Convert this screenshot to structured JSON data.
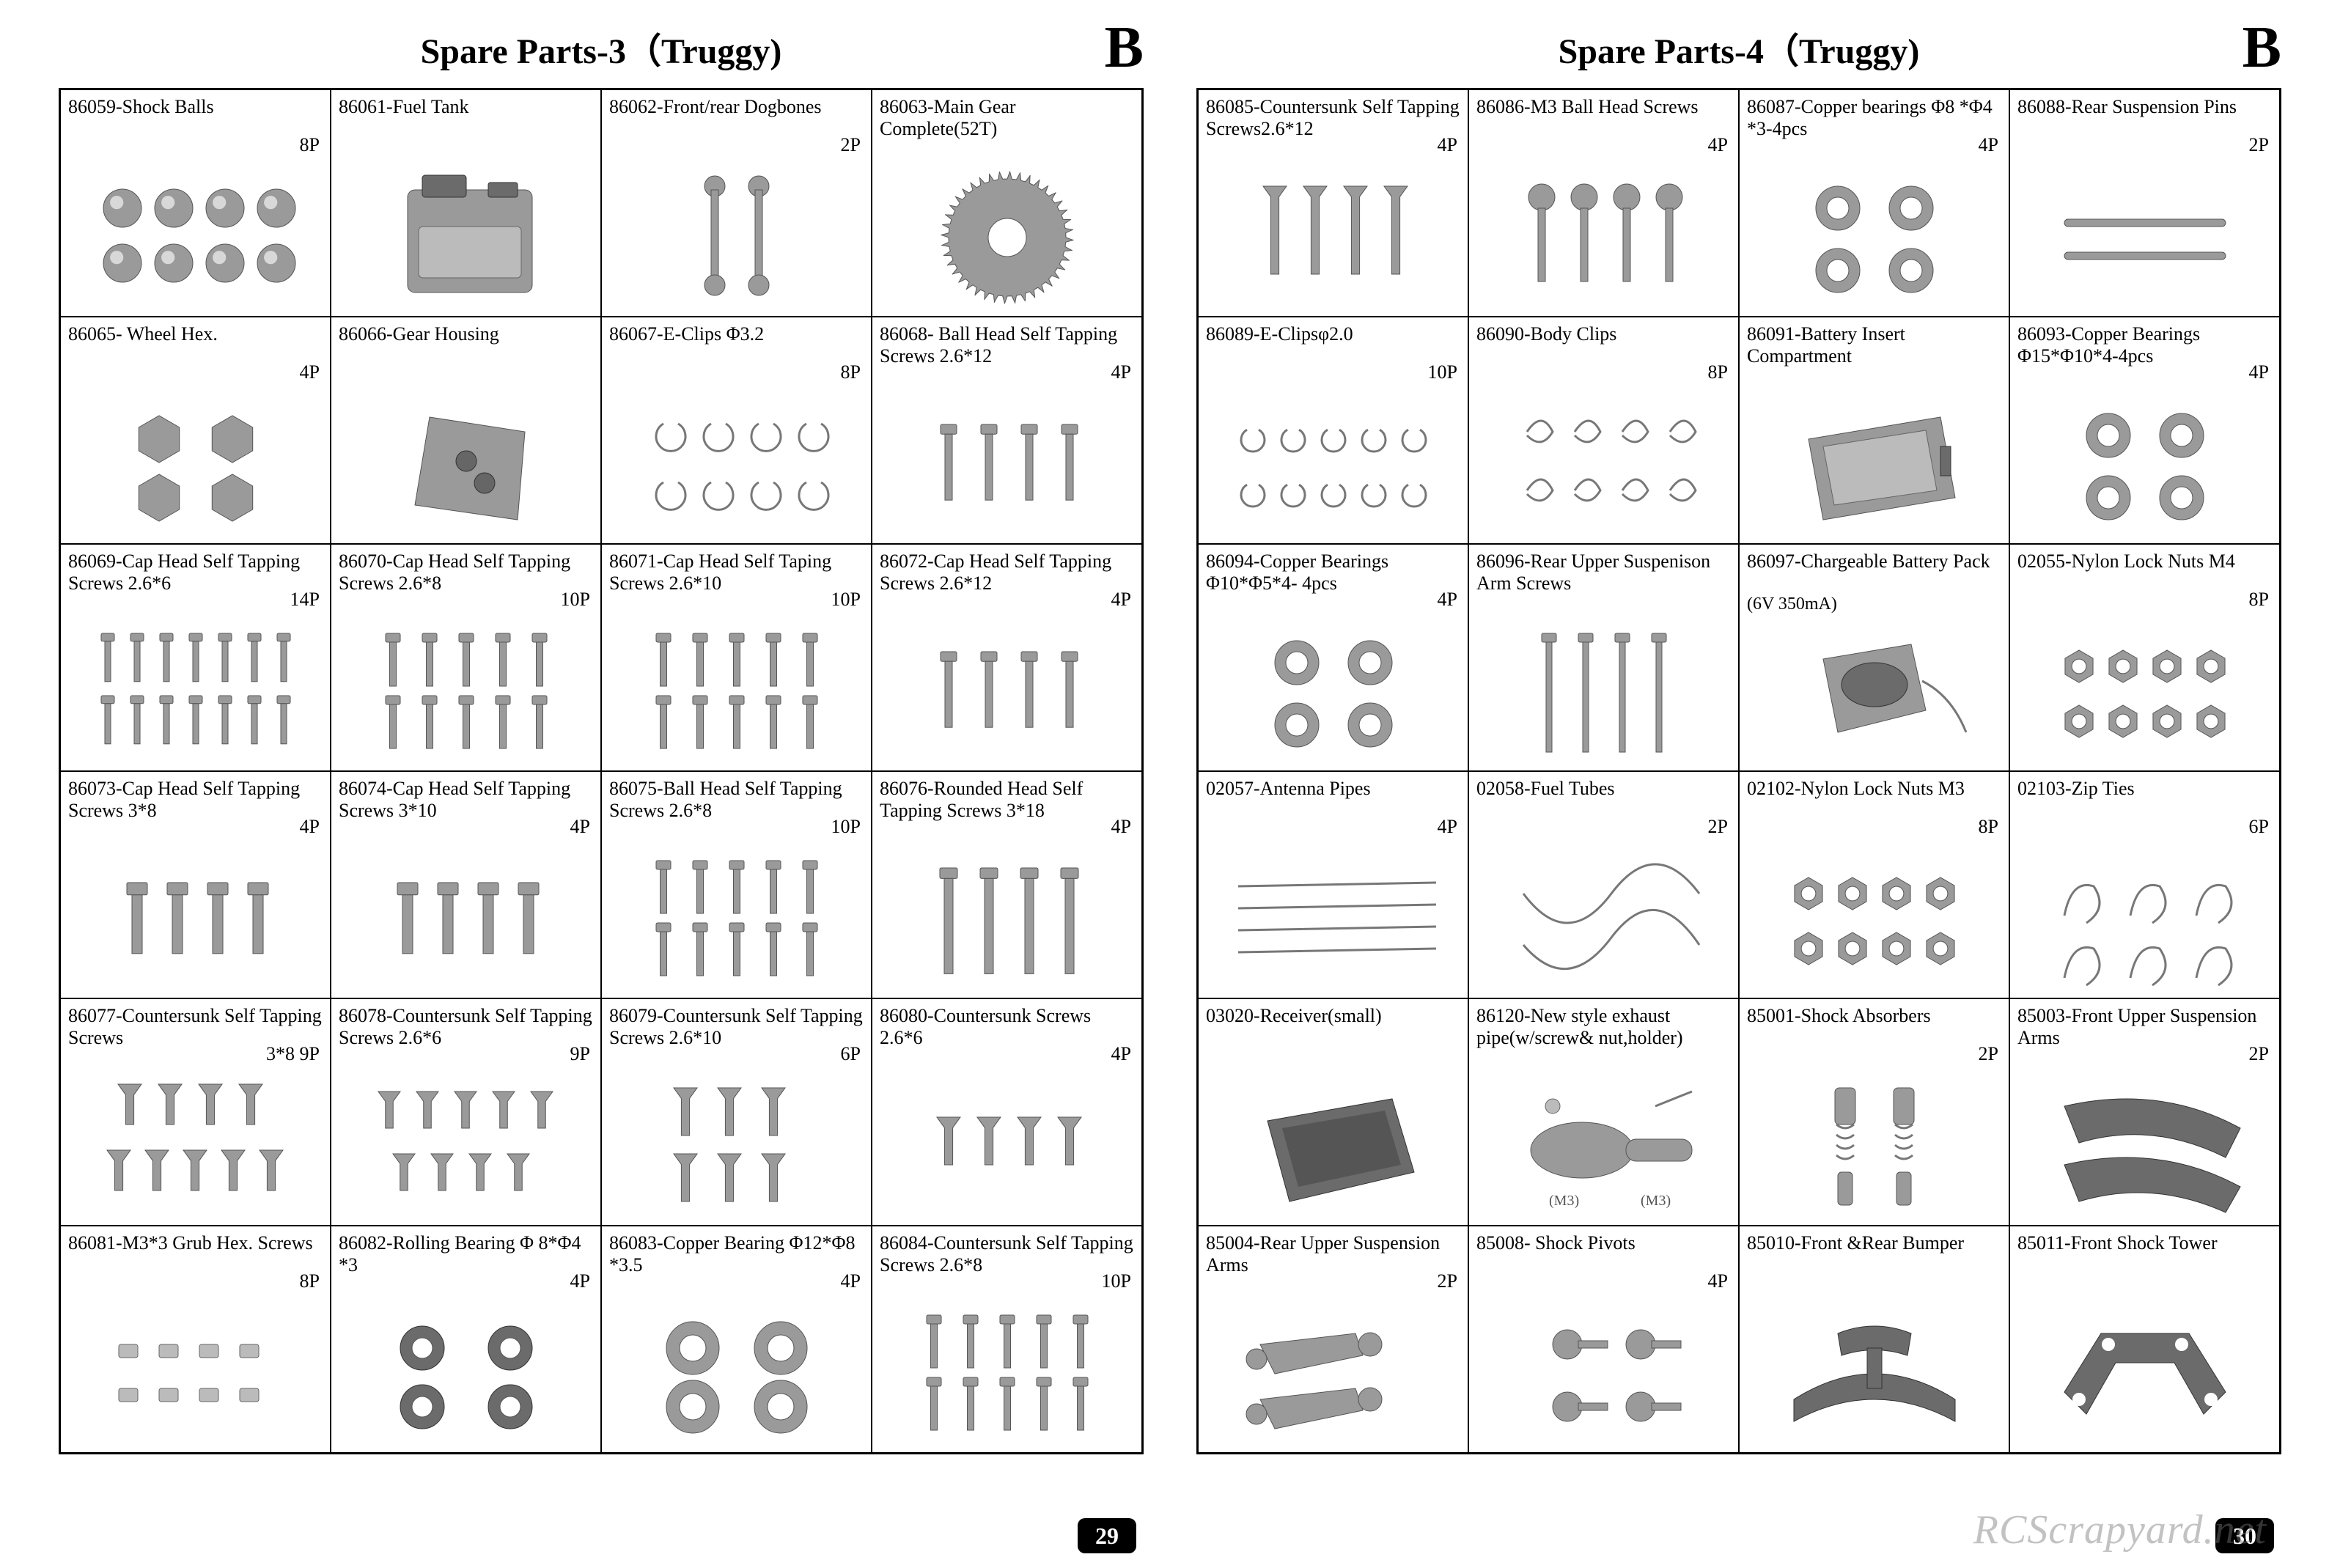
{
  "watermark": "RCScrapyard.net",
  "pages": [
    {
      "title": "Spare Parts-3（Truggy)",
      "corner": "B",
      "pagenum": "29",
      "cells": [
        {
          "code": "86059",
          "name": "Shock Balls",
          "qty": "8P",
          "icon": "balls8"
        },
        {
          "code": "86061",
          "name": "Fuel Tank",
          "qty": "",
          "icon": "fueltank"
        },
        {
          "code": "86062",
          "name": "Front/rear Dogbones",
          "qty": "2P",
          "icon": "dogbones"
        },
        {
          "code": "86063",
          "name": "Main Gear Complete(52T)",
          "qty": "",
          "icon": "gear"
        },
        {
          "code": "86065",
          "name": " Wheel Hex.",
          "qty": "4P",
          "icon": "hex4"
        },
        {
          "code": "86066",
          "name": "Gear Housing",
          "qty": "",
          "icon": "housing"
        },
        {
          "code": "86067",
          "name": "E-Clips Φ3.2",
          "qty": "8P",
          "icon": "eclips8"
        },
        {
          "code": "86068",
          "name": " Ball Head Self Tapping Screws 2.6*12",
          "qty": "4P",
          "icon": "screws4m"
        },
        {
          "code": "86069",
          "name": "Cap Head Self Tapping Screws  2.6*6",
          "qty": "14P",
          "icon": "screws14"
        },
        {
          "code": "86070",
          "name": "Cap Head Self Tapping Screws 2.6*8",
          "qty": "10P",
          "icon": "screws10"
        },
        {
          "code": "86071",
          "name": "Cap Head Self Taping  Screws 2.6*10",
          "qty": "10P",
          "icon": "screws10"
        },
        {
          "code": "86072",
          "name": "Cap Head Self Tapping Screws  2.6*12",
          "qty": "4P",
          "icon": "screws4m"
        },
        {
          "code": "86073",
          "name": "Cap Head Self Tapping Screws 3*8",
          "qty": "4P",
          "icon": "screws4w"
        },
        {
          "code": "86074",
          "name": "Cap Head Self Tapping Screws 3*10",
          "qty": "4P",
          "icon": "screws4w"
        },
        {
          "code": "86075",
          "name": "Ball Head Self Tapping Screws  2.6*8",
          "qty": "10P",
          "icon": "screws10"
        },
        {
          "code": "86076",
          "name": "Rounded Head Self Tapping Screws 3*18",
          "qty": "4P",
          "icon": "screws4l"
        },
        {
          "code": "86077",
          "name": "Countersunk Self Tapping Screws",
          "qty": "3*8 9P",
          "icon": "csk9"
        },
        {
          "code": "86078",
          "name": "Countersunk Self Tapping Screws 2.6*6",
          "qty": "9P",
          "icon": "csk9b"
        },
        {
          "code": "86079",
          "name": "Countersunk Self Tapping  Screws 2.6*10",
          "qty": "6P",
          "icon": "csk6"
        },
        {
          "code": "86080",
          "name": "Countersunk Screws     2.6*6",
          "qty": "4P",
          "icon": "csk4"
        },
        {
          "code": "86081",
          "name": "M3*3 Grub Hex. Screws",
          "qty": "8P",
          "icon": "grub8"
        },
        {
          "code": "86082",
          "name": "Rolling Bearing Φ 8*Φ4 *3",
          "qty": "4P",
          "icon": "bearing4"
        },
        {
          "code": "86083",
          "name": "Copper Bearing Φ12*Φ8 *3.5",
          "qty": "4P",
          "icon": "copper4"
        },
        {
          "code": "86084",
          "name": "Countersunk Self Tapping Screws 2.6*8",
          "qty": "10P",
          "icon": "screws10"
        }
      ]
    },
    {
      "title": "Spare Parts-4（Truggy)",
      "corner": "B",
      "pagenum": "30",
      "cells": [
        {
          "code": "86085",
          "name": "Countersunk Self Tapping Screws2.6*12",
          "qty": "4P",
          "icon": "csk4l"
        },
        {
          "code": "86086",
          "name": "M3 Ball Head Screws",
          "qty": "4P",
          "icon": "ballhead4"
        },
        {
          "code": "86087",
          "name": "Copper bearings Φ8 *Φ4 *3-4pcs",
          "qty": "4P",
          "icon": "copper4b"
        },
        {
          "code": "86088",
          "name": "Rear Suspension Pins",
          "qty": "2P",
          "icon": "pins2"
        },
        {
          "code": "86089",
          "name": "E-Clipsφ2.0",
          "qty": "10P",
          "icon": "eclips10"
        },
        {
          "code": "86090",
          "name": "Body  Clips",
          "qty": "8P",
          "icon": "bodyclips"
        },
        {
          "code": "86091",
          "name": "Battery Insert Compartment",
          "qty": "",
          "icon": "battbox"
        },
        {
          "code": "86093",
          "name": "Copper Bearings Φ15*Φ10*4-4pcs",
          "qty": "4P",
          "icon": "copper4b"
        },
        {
          "code": "86094",
          "name": "Copper Bearings Φ10*Φ5*4- 4pcs",
          "qty": "4P",
          "icon": "copper4b"
        },
        {
          "code": "86096",
          "name": "Rear Upper Suspenison Arm Screws",
          "qty": "",
          "icon": "longscrew4"
        },
        {
          "code": "86097",
          "name": "Chargeable Battery Pack",
          "sub": "(6V 350mA)",
          "qty": "",
          "icon": "battpack"
        },
        {
          "code": "02055",
          "name": "Nylon Lock Nuts M4",
          "qty": "8P",
          "icon": "nuts8"
        },
        {
          "code": "02057",
          "name": "Antenna Pipes",
          "qty": "4P",
          "icon": "antenna"
        },
        {
          "code": "02058",
          "name": "Fuel Tubes",
          "qty": "2P",
          "icon": "fueltubes"
        },
        {
          "code": "02102",
          "name": "Nylon Lock Nuts M3",
          "qty": "8P",
          "icon": "nuts8"
        },
        {
          "code": "02103",
          "name": "Zip Ties",
          "qty": "6P",
          "icon": "zipties"
        },
        {
          "code": "03020",
          "name": "Receiver(small)",
          "qty": "",
          "icon": "receiver"
        },
        {
          "code": "86120",
          "name": "New style exhaust pipe(w/screw& nut,holder)",
          "qty": "",
          "icon": "exhaust"
        },
        {
          "code": "85001",
          "name": "Shock Absorbers",
          "qty": "2P",
          "icon": "shocks"
        },
        {
          "code": "85003",
          "name": "Front Upper Suspension Arms",
          "qty": "2P",
          "icon": "arms-f"
        },
        {
          "code": "85004",
          "name": "Rear Upper Suspension Arms",
          "qty": "2P",
          "icon": "arms-r"
        },
        {
          "code": "85008",
          "name": " Shock Pivots",
          "qty": "4P",
          "icon": "pivots"
        },
        {
          "code": "85010",
          "name": "Front &Rear Bumper",
          "qty": "",
          "icon": "bumper"
        },
        {
          "code": "85011",
          "name": "Front Shock Tower",
          "qty": "",
          "icon": "tower"
        }
      ]
    }
  ]
}
